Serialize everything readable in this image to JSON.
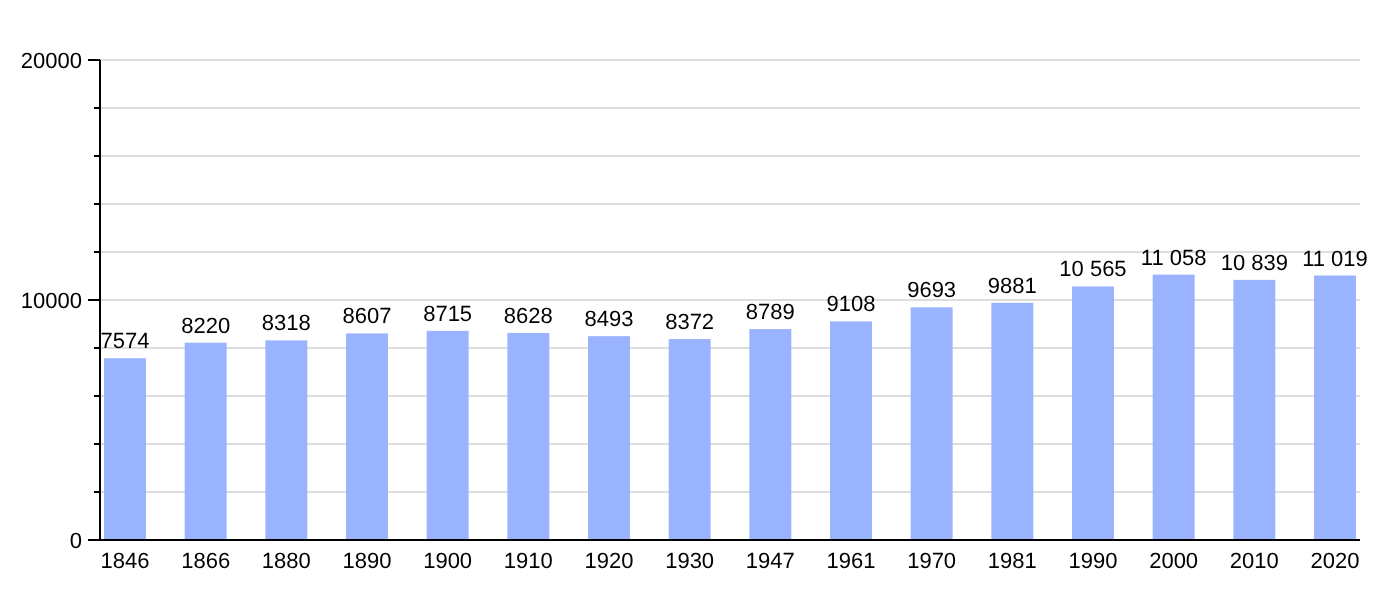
{
  "chart_data": {
    "type": "bar",
    "categories": [
      "1846",
      "1866",
      "1880",
      "1890",
      "1900",
      "1910",
      "1920",
      "1930",
      "1947",
      "1961",
      "1970",
      "1981",
      "1990",
      "2000",
      "2010",
      "2020"
    ],
    "values": [
      7574,
      8220,
      8318,
      8607,
      8715,
      8628,
      8493,
      8372,
      8789,
      9108,
      9693,
      9881,
      10565,
      11058,
      10839,
      11019
    ],
    "value_labels": [
      "7574",
      "8220",
      "8318",
      "8607",
      "8715",
      "8628",
      "8493",
      "8372",
      "8789",
      "9108",
      "9693",
      "9881",
      "10 565",
      "11 058",
      "10 839",
      "11 019"
    ],
    "color": "#99b3ff",
    "ylim": [
      0,
      20000
    ],
    "yticks": [
      0,
      {
        "value": 2000,
        "label": null
      },
      {
        "value": 4000,
        "label": null
      },
      {
        "value": 6000,
        "label": null
      },
      {
        "value": 8000,
        "label": null
      },
      10000,
      {
        "value": 12000,
        "label": null
      },
      {
        "value": 14000,
        "label": null
      },
      {
        "value": 16000,
        "label": null
      },
      {
        "value": 18000,
        "label": null
      },
      20000
    ],
    "grid": true
  }
}
